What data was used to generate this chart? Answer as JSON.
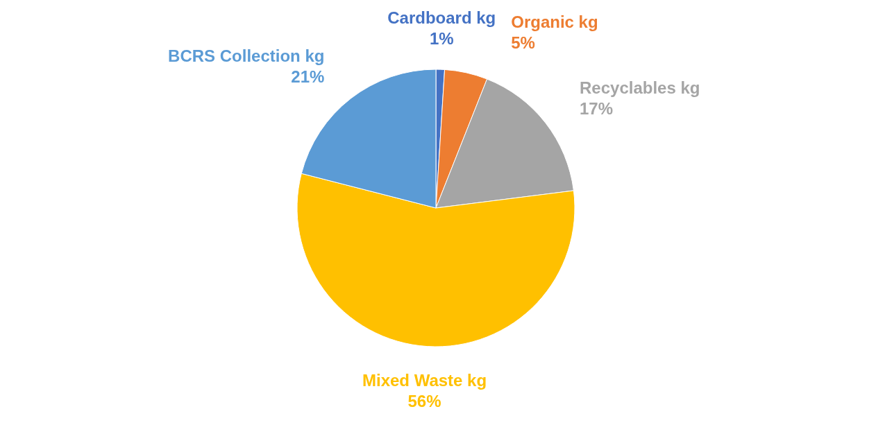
{
  "chart_data": {
    "type": "pie",
    "categories": [
      "Cardboard kg",
      "Organic kg",
      "Recyclables kg",
      "Mixed Waste kg",
      "BCRS Collection kg"
    ],
    "values": [
      1,
      5,
      17,
      56,
      21
    ],
    "value_labels": [
      "1%",
      "5%",
      "17%",
      "56%",
      "21%"
    ],
    "colors": [
      "#4472c4",
      "#ed7d31",
      "#a5a5a5",
      "#ffc000",
      "#5b9bd5"
    ]
  }
}
